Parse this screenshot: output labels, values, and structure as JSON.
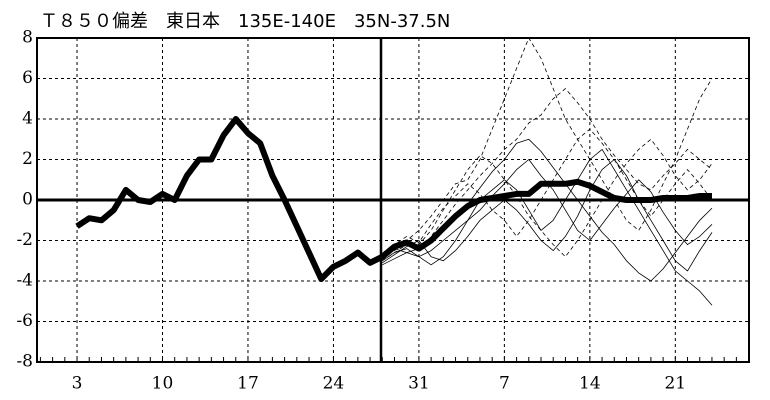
{
  "chart_data": {
    "type": "line",
    "title": "Ｔ８５０偏差　東日本　135E-140E　35N-37.5N",
    "categories": [
      null,
      null,
      null,
      "3",
      null,
      null,
      null,
      null,
      null,
      null,
      "10",
      null,
      null,
      null,
      null,
      null,
      null,
      "17",
      null,
      null,
      null,
      null,
      null,
      null,
      "24",
      null,
      null,
      null,
      null,
      null,
      null,
      "31",
      null,
      null,
      null,
      null,
      null,
      null,
      "7",
      null,
      null,
      null,
      null,
      null,
      null,
      "14",
      null,
      null,
      null,
      null,
      null,
      null,
      "21",
      null,
      null,
      null,
      null,
      null
    ],
    "ylim": [
      -8,
      8
    ],
    "yticks": [
      -8,
      -6,
      -4,
      -2,
      0,
      2,
      4,
      6,
      8
    ],
    "grid": true,
    "series": [
      {
        "color": "#000000",
        "width": 6,
        "dash": false,
        "values": [
          null,
          null,
          null,
          -1.3,
          -0.9,
          -1.0,
          -0.5,
          0.5,
          0.0,
          -0.1,
          0.3,
          0.0,
          1.2,
          2.0,
          2.0,
          3.2,
          4.0,
          3.3,
          2.8,
          1.2,
          0.0,
          -1.3,
          -2.6,
          -3.9,
          -3.3,
          -3.0,
          -2.6,
          -3.1,
          -2.8,
          -2.3,
          -2.1,
          -2.4,
          -2.0,
          -1.4,
          -0.8,
          -0.3,
          0.0,
          0.1,
          0.2,
          0.3,
          0.3,
          0.8,
          0.8,
          0.8,
          0.9,
          0.7,
          0.4,
          0.1,
          0.0,
          0.0,
          0.0,
          0.1,
          0.1,
          0.1,
          0.2,
          0.2,
          null,
          null
        ]
      },
      {
        "color": "#000000",
        "width": 0.8,
        "dash": true,
        "values": [
          null,
          null,
          null,
          null,
          null,
          null,
          null,
          null,
          null,
          null,
          null,
          null,
          null,
          null,
          null,
          null,
          null,
          null,
          null,
          null,
          null,
          null,
          null,
          null,
          null,
          null,
          null,
          null,
          -3.0,
          -2.6,
          -2.2,
          -2.5,
          -1.8,
          -1.0,
          -0.2,
          0.5,
          1.2,
          1.8,
          2.5,
          3.0,
          3.8,
          4.2,
          5.0,
          5.5,
          4.8,
          4.0,
          3.0,
          2.2,
          1.5,
          0.8,
          0.5,
          1.2,
          1.8,
          2.5,
          2.0,
          1.5,
          null,
          null
        ]
      },
      {
        "color": "#000000",
        "width": 0.8,
        "dash": false,
        "values": [
          null,
          null,
          null,
          null,
          null,
          null,
          null,
          null,
          null,
          null,
          null,
          null,
          null,
          null,
          null,
          null,
          null,
          null,
          null,
          null,
          null,
          null,
          null,
          null,
          null,
          null,
          null,
          null,
          -2.8,
          -2.4,
          -2.6,
          -2.8,
          -2.5,
          -2.0,
          -1.5,
          -1.0,
          -0.5,
          0.2,
          0.8,
          1.5,
          2.0,
          1.2,
          0.5,
          -0.5,
          -1.5,
          -2.0,
          -1.2,
          -0.4,
          0.3,
          1.0,
          0.4,
          -0.6,
          -1.5,
          -2.2,
          -1.8,
          -1.2,
          null,
          null
        ]
      },
      {
        "color": "#000000",
        "width": 0.8,
        "dash": true,
        "values": [
          null,
          null,
          null,
          null,
          null,
          null,
          null,
          null,
          null,
          null,
          null,
          null,
          null,
          null,
          null,
          null,
          null,
          null,
          null,
          null,
          null,
          null,
          null,
          null,
          null,
          null,
          null,
          null,
          -2.9,
          -2.5,
          -2.0,
          -2.2,
          -1.5,
          -0.5,
          0.5,
          1.5,
          2.2,
          1.8,
          1.0,
          0.2,
          -0.8,
          -1.5,
          -2.2,
          -2.8,
          -2.0,
          -1.0,
          0.0,
          1.0,
          1.8,
          2.5,
          3.0,
          2.2,
          1.2,
          0.5,
          1.0,
          1.8,
          null,
          null
        ]
      },
      {
        "color": "#000000",
        "width": 0.8,
        "dash": false,
        "values": [
          null,
          null,
          null,
          null,
          null,
          null,
          null,
          null,
          null,
          null,
          null,
          null,
          null,
          null,
          null,
          null,
          null,
          null,
          null,
          null,
          null,
          null,
          null,
          null,
          null,
          null,
          null,
          null,
          -3.1,
          -2.7,
          -2.3,
          -2.0,
          -2.8,
          -3.0,
          -2.5,
          -1.8,
          -1.0,
          -0.5,
          0.0,
          -0.5,
          -1.2,
          -2.0,
          -2.5,
          -1.8,
          -0.8,
          0.5,
          1.5,
          2.0,
          1.2,
          0.0,
          -1.0,
          -2.0,
          -3.0,
          -3.5,
          -2.5,
          -1.6,
          null,
          null
        ]
      },
      {
        "color": "#000000",
        "width": 0.8,
        "dash": true,
        "values": [
          null,
          null,
          null,
          null,
          null,
          null,
          null,
          null,
          null,
          null,
          null,
          null,
          null,
          null,
          null,
          null,
          null,
          null,
          null,
          null,
          null,
          null,
          null,
          null,
          null,
          null,
          null,
          null,
          -2.9,
          -2.3,
          -2.0,
          -1.5,
          -0.8,
          0.0,
          0.8,
          1.0,
          2.0,
          3.5,
          5.0,
          6.5,
          8.0,
          7.0,
          5.5,
          4.0,
          3.0,
          2.0,
          1.0,
          0.0,
          -1.0,
          -1.5,
          -0.5,
          0.8,
          2.0,
          3.5,
          5.0,
          6.0,
          null,
          null
        ]
      },
      {
        "color": "#000000",
        "width": 0.8,
        "dash": false,
        "values": [
          null,
          null,
          null,
          null,
          null,
          null,
          null,
          null,
          null,
          null,
          null,
          null,
          null,
          null,
          null,
          null,
          null,
          null,
          null,
          null,
          null,
          null,
          null,
          null,
          null,
          null,
          null,
          null,
          -3.0,
          -2.6,
          -2.4,
          -2.8,
          -3.2,
          -2.8,
          -2.0,
          -1.0,
          0.0,
          0.5,
          1.0,
          0.5,
          -0.5,
          -1.5,
          -1.0,
          0.0,
          1.0,
          2.0,
          2.5,
          1.5,
          0.5,
          -0.5,
          -1.5,
          -2.5,
          -3.5,
          -4.0,
          -4.5,
          -5.2,
          null,
          null
        ]
      },
      {
        "color": "#000000",
        "width": 0.8,
        "dash": true,
        "values": [
          null,
          null,
          null,
          null,
          null,
          null,
          null,
          null,
          null,
          null,
          null,
          null,
          null,
          null,
          null,
          null,
          null,
          null,
          null,
          null,
          null,
          null,
          null,
          null,
          null,
          null,
          null,
          null,
          -2.8,
          -2.2,
          -1.8,
          -2.1,
          -1.2,
          -0.4,
          0.2,
          0.8,
          0.3,
          -0.5,
          -1.0,
          -1.8,
          -1.0,
          0.0,
          1.0,
          2.0,
          3.0,
          3.5,
          2.8,
          2.0,
          1.0,
          0.0,
          -0.8,
          0.0,
          0.8,
          1.5,
          0.8,
          0.0,
          null,
          null
        ]
      },
      {
        "color": "#000000",
        "width": 0.8,
        "dash": false,
        "values": [
          null,
          null,
          null,
          null,
          null,
          null,
          null,
          null,
          null,
          null,
          null,
          null,
          null,
          null,
          null,
          null,
          null,
          null,
          null,
          null,
          null,
          null,
          null,
          null,
          null,
          null,
          null,
          null,
          -3.2,
          -2.9,
          -2.6,
          -2.4,
          -2.0,
          -1.4,
          -0.8,
          -0.2,
          0.6,
          1.4,
          2.0,
          2.8,
          3.0,
          2.4,
          1.6,
          0.8,
          0.0,
          -0.8,
          -1.6,
          -2.2,
          -3.0,
          -3.6,
          -4.0,
          -3.4,
          -2.6,
          -1.8,
          -1.0,
          -0.4,
          null,
          null
        ]
      }
    ]
  }
}
